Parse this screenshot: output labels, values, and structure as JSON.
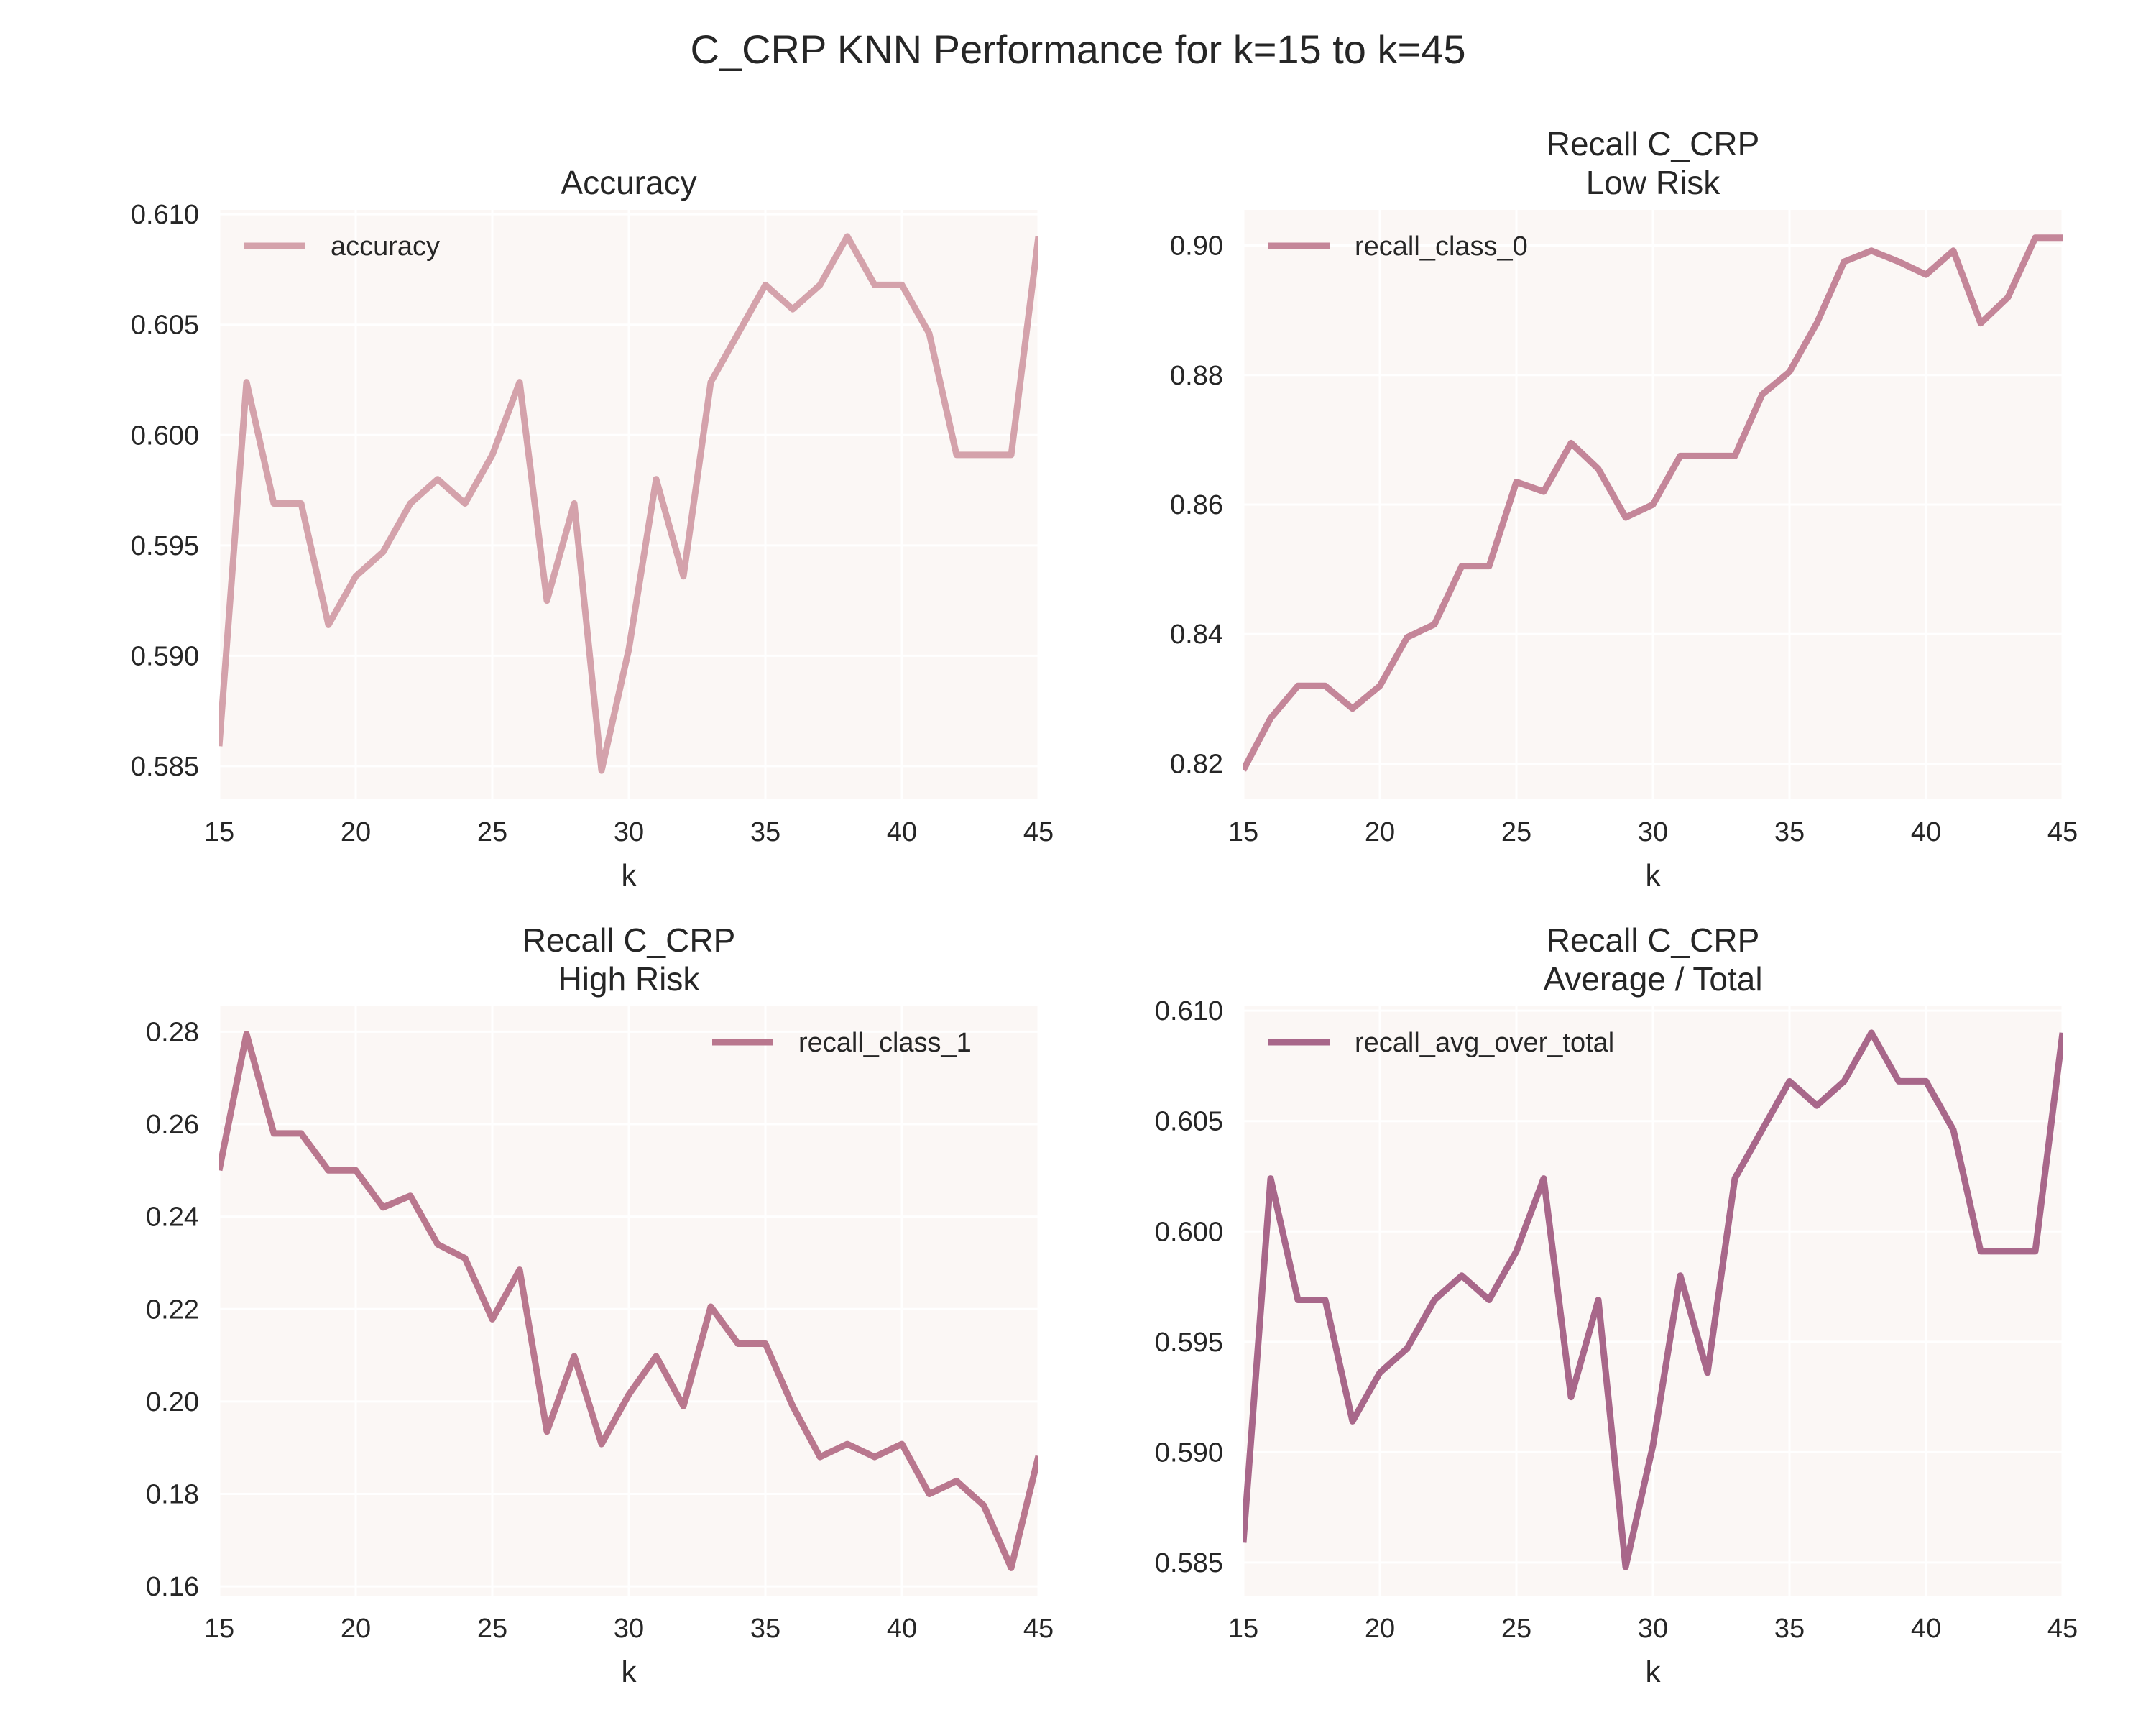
{
  "figure": {
    "title": "C_CRP KNN Performance for k=15 to k=45"
  },
  "chart_data": [
    {
      "type": "line",
      "title": "Accuracy",
      "title_lines": [
        "Accuracy"
      ],
      "xlabel": "k",
      "ylabel": "",
      "xlim": [
        15,
        45
      ],
      "ylim": [
        0.5835,
        0.6102
      ],
      "xticks": [
        15,
        20,
        25,
        30,
        35,
        40,
        45
      ],
      "xtick_labels": [
        "15",
        "20",
        "25",
        "30",
        "35",
        "40",
        "45"
      ],
      "yticks": [
        0.585,
        0.59,
        0.595,
        0.6,
        0.605,
        0.61
      ],
      "ytick_labels": [
        "0.585",
        "0.590",
        "0.595",
        "0.600",
        "0.605",
        "0.610"
      ],
      "grid": true,
      "legend_position": "upper-left",
      "x": [
        15,
        16,
        17,
        18,
        19,
        20,
        21,
        22,
        23,
        24,
        25,
        26,
        27,
        28,
        29,
        30,
        31,
        32,
        33,
        34,
        35,
        36,
        37,
        38,
        39,
        40,
        41,
        42,
        43,
        44,
        45
      ],
      "series": [
        {
          "name": "accuracy",
          "color": "#d4a2ab",
          "values": [
            0.5859,
            0.6024,
            0.5969,
            0.5969,
            0.5914,
            0.5936,
            0.5947,
            0.5969,
            0.598,
            0.5969,
            0.5991,
            0.6024,
            0.5925,
            0.5969,
            0.5848,
            0.5903,
            0.598,
            0.5936,
            0.6024,
            0.6046,
            0.6068,
            0.6057,
            0.6068,
            0.609,
            0.6068,
            0.6068,
            0.6046,
            0.5991,
            0.5991,
            0.5991,
            0.609
          ]
        }
      ]
    },
    {
      "type": "line",
      "title": "Recall C_CRP\nLow Risk",
      "title_lines": [
        "Recall C_CRP",
        "Low Risk"
      ],
      "xlabel": "k",
      "ylabel": "",
      "xlim": [
        15,
        45
      ],
      "ylim": [
        0.8145,
        0.9055
      ],
      "xticks": [
        15,
        20,
        25,
        30,
        35,
        40,
        45
      ],
      "xtick_labels": [
        "15",
        "20",
        "25",
        "30",
        "35",
        "40",
        "45"
      ],
      "yticks": [
        0.82,
        0.84,
        0.86,
        0.88,
        0.9
      ],
      "ytick_labels": [
        "0.82",
        "0.84",
        "0.86",
        "0.88",
        "0.90"
      ],
      "grid": true,
      "legend_position": "upper-left",
      "x": [
        15,
        16,
        17,
        18,
        19,
        20,
        21,
        22,
        23,
        24,
        25,
        26,
        27,
        28,
        29,
        30,
        31,
        32,
        33,
        34,
        35,
        36,
        37,
        38,
        39,
        40,
        41,
        42,
        43,
        44,
        45
      ],
      "series": [
        {
          "name": "recall_class_0",
          "color": "#c48699",
          "values": [
            0.819,
            0.827,
            0.832,
            0.832,
            0.8285,
            0.832,
            0.8395,
            0.8415,
            0.8505,
            0.8505,
            0.8635,
            0.862,
            0.8695,
            0.8655,
            0.858,
            0.86,
            0.8675,
            0.8675,
            0.8675,
            0.877,
            0.8805,
            0.888,
            0.8975,
            0.8992,
            0.8975,
            0.8955,
            0.8992,
            0.888,
            0.892,
            0.9012,
            0.9012
          ]
        }
      ]
    },
    {
      "type": "line",
      "title": "Recall C_CRP\nHigh Risk",
      "title_lines": [
        "Recall C_CRP",
        "High Risk"
      ],
      "xlabel": "k",
      "ylabel": "",
      "xlim": [
        15,
        45
      ],
      "ylim": [
        0.158,
        0.2855
      ],
      "xticks": [
        15,
        20,
        25,
        30,
        35,
        40,
        45
      ],
      "xtick_labels": [
        "15",
        "20",
        "25",
        "30",
        "35",
        "40",
        "45"
      ],
      "yticks": [
        0.16,
        0.18,
        0.2,
        0.22,
        0.24,
        0.26,
        0.28
      ],
      "ytick_labels": [
        "0.16",
        "0.18",
        "0.20",
        "0.22",
        "0.24",
        "0.26",
        "0.28"
      ],
      "grid": true,
      "legend_position": "upper-right",
      "x": [
        15,
        16,
        17,
        18,
        19,
        20,
        21,
        22,
        23,
        24,
        25,
        26,
        27,
        28,
        29,
        30,
        31,
        32,
        33,
        34,
        35,
        36,
        37,
        38,
        39,
        40,
        41,
        42,
        43,
        44,
        45
      ],
      "series": [
        {
          "name": "recall_class_1",
          "color": "#b9778e",
          "values": [
            0.25,
            0.2795,
            0.258,
            0.258,
            0.25,
            0.25,
            0.242,
            0.2445,
            0.234,
            0.231,
            0.2178,
            0.2285,
            0.1935,
            0.2098,
            0.1908,
            0.2015,
            0.2098,
            0.199,
            0.2205,
            0.2125,
            0.2125,
            0.199,
            0.188,
            0.1908,
            0.188,
            0.1908,
            0.18,
            0.1828,
            0.1775,
            0.164,
            0.1882
          ]
        }
      ]
    },
    {
      "type": "line",
      "title": "Recall C_CRP\nAverage / Total",
      "title_lines": [
        "Recall C_CRP",
        "Average / Total"
      ],
      "xlabel": "k",
      "ylabel": "",
      "xlim": [
        15,
        45
      ],
      "ylim": [
        0.5835,
        0.6102
      ],
      "xticks": [
        15,
        20,
        25,
        30,
        35,
        40,
        45
      ],
      "xtick_labels": [
        "15",
        "20",
        "25",
        "30",
        "35",
        "40",
        "45"
      ],
      "yticks": [
        0.585,
        0.59,
        0.595,
        0.6,
        0.605,
        0.61
      ],
      "ytick_labels": [
        "0.585",
        "0.590",
        "0.595",
        "0.600",
        "0.605",
        "0.610"
      ],
      "grid": true,
      "legend_position": "upper-left",
      "x": [
        15,
        16,
        17,
        18,
        19,
        20,
        21,
        22,
        23,
        24,
        25,
        26,
        27,
        28,
        29,
        30,
        31,
        32,
        33,
        34,
        35,
        36,
        37,
        38,
        39,
        40,
        41,
        42,
        43,
        44,
        45
      ],
      "series": [
        {
          "name": "recall_avg_over_total",
          "color": "#a8678a",
          "values": [
            0.5859,
            0.6024,
            0.5969,
            0.5969,
            0.5914,
            0.5936,
            0.5947,
            0.5969,
            0.598,
            0.5969,
            0.5991,
            0.6024,
            0.5925,
            0.5969,
            0.5848,
            0.5903,
            0.598,
            0.5936,
            0.6024,
            0.6046,
            0.6068,
            0.6057,
            0.6068,
            0.609,
            0.6068,
            0.6068,
            0.6046,
            0.5991,
            0.5991,
            0.5991,
            0.609
          ]
        }
      ]
    }
  ]
}
